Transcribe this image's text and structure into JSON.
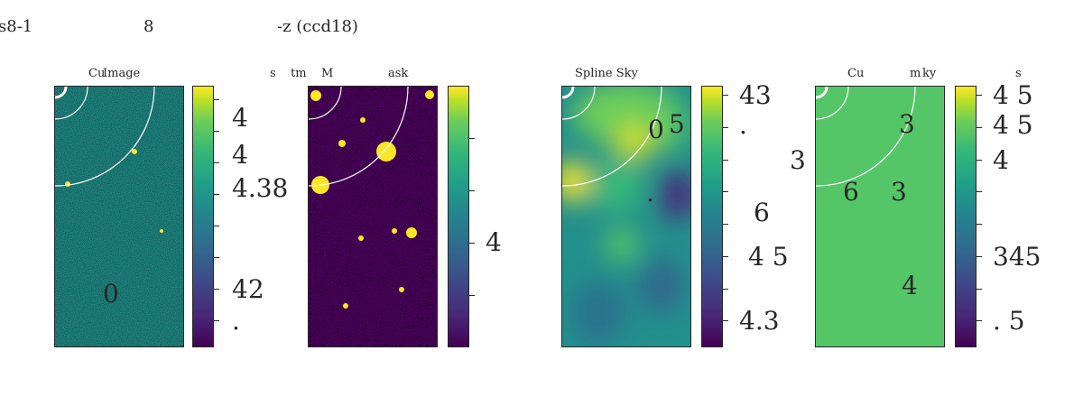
{
  "figure": {
    "suptitle_parts": [
      "s8-1",
      "8",
      "-z (ccd18)"
    ]
  },
  "panels": [
    {
      "title_parts": [
        "Cu",
        "Image",
        "s",
        "tm"
      ],
      "image": "noise-image",
      "colorbar_labels": [
        "4",
        "4",
        "4.38",
        "42",
        "."
      ],
      "overlay_labels": [
        "0"
      ]
    },
    {
      "title_parts": [
        "M",
        "ask"
      ],
      "image": "mask-image",
      "colorbar_labels": [
        "4"
      ],
      "overlay_labels": []
    },
    {
      "title_parts": [
        "Spline Sky"
      ],
      "image": "smooth-sky-image",
      "colorbar_labels": [
        "43",
        ".",
        "3",
        "6",
        "4 5",
        "4.3"
      ],
      "overlay_labels": [
        "0",
        "5",
        "."
      ]
    },
    {
      "title_parts": [
        "Cu",
        "m",
        "ky",
        "s"
      ],
      "image": "flat-sky-image",
      "colorbar_labels": [
        "4 5",
        "4 5",
        "4",
        "345",
        ".  5"
      ],
      "overlay_labels": [
        "3",
        "6",
        "3",
        "4"
      ]
    }
  ],
  "colors": {
    "viridis_low": "#440154",
    "viridis_high": "#fde725",
    "flat_sky": "#55c667",
    "axes": "#262626"
  }
}
